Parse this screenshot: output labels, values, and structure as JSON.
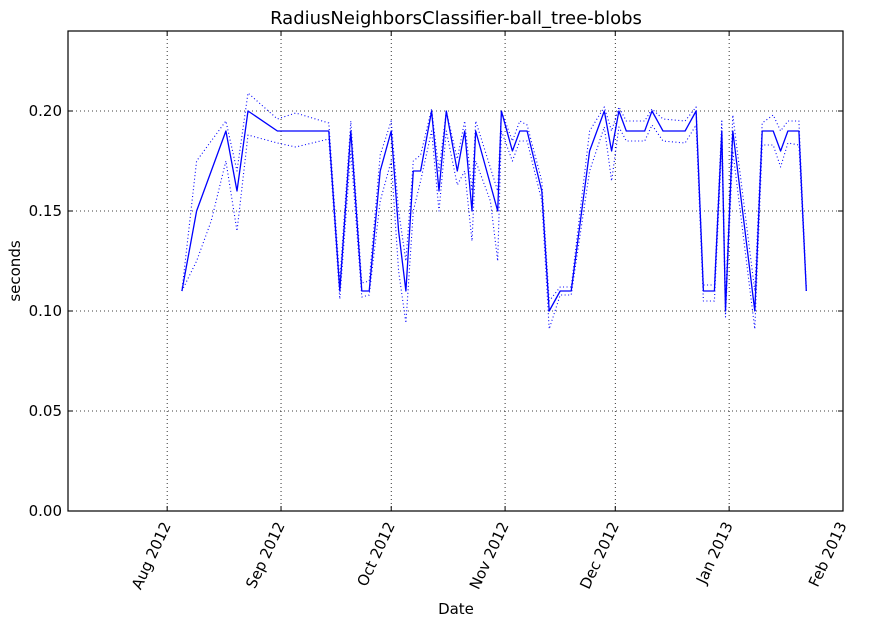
{
  "chart_data": {
    "type": "line",
    "title": "RadiusNeighborsClassifier-ball_tree-blobs",
    "xlabel": "Date",
    "ylabel": "seconds",
    "xlim": [
      "2012-07-05",
      "2013-02-01"
    ],
    "ylim": [
      0.0,
      0.24
    ],
    "grid": true,
    "x_ticks": [
      "2012-08-01",
      "2012-09-01",
      "2012-10-01",
      "2012-11-01",
      "2012-12-01",
      "2013-01-01",
      "2013-02-01"
    ],
    "x_tick_labels": [
      "Aug 2012",
      "Sep 2012",
      "Oct 2012",
      "Nov 2012",
      "Dec 2012",
      "Jan 2013",
      "Feb 2013"
    ],
    "y_ticks": [
      0.0,
      0.05,
      0.1,
      0.15,
      0.2
    ],
    "y_tick_labels": [
      "0.00",
      "0.05",
      "0.10",
      "0.15",
      "0.20"
    ],
    "line_color": "#0000ff",
    "series": [
      {
        "style": "solid",
        "points": [
          [
            "2012-08-05",
            0.11
          ],
          [
            "2012-08-09",
            0.15
          ],
          [
            "2012-08-17",
            0.19
          ],
          [
            "2012-08-20",
            0.16
          ],
          [
            "2012-08-23",
            0.2
          ],
          [
            "2012-08-31",
            0.19
          ],
          [
            "2012-09-14",
            0.19
          ],
          [
            "2012-09-17",
            0.11
          ],
          [
            "2012-09-20",
            0.19
          ],
          [
            "2012-09-23",
            0.11
          ],
          [
            "2012-09-25",
            0.11
          ],
          [
            "2012-09-28",
            0.17
          ],
          [
            "2012-10-01",
            0.19
          ],
          [
            "2012-10-03",
            0.14
          ],
          [
            "2012-10-05",
            0.11
          ],
          [
            "2012-10-07",
            0.17
          ],
          [
            "2012-10-09",
            0.17
          ],
          [
            "2012-10-12",
            0.2
          ],
          [
            "2012-10-14",
            0.16
          ],
          [
            "2012-10-16",
            0.2
          ],
          [
            "2012-10-19",
            0.17
          ],
          [
            "2012-10-21",
            0.19
          ],
          [
            "2012-10-23",
            0.15
          ],
          [
            "2012-10-24",
            0.19
          ],
          [
            "2012-10-30",
            0.15
          ],
          [
            "2012-10-31",
            0.2
          ],
          [
            "2012-11-03",
            0.18
          ],
          [
            "2012-11-05",
            0.19
          ],
          [
            "2012-11-07",
            0.19
          ],
          [
            "2012-11-11",
            0.16
          ],
          [
            "2012-11-13",
            0.1
          ],
          [
            "2012-11-16",
            0.11
          ],
          [
            "2012-11-19",
            0.11
          ],
          [
            "2012-11-24",
            0.18
          ],
          [
            "2012-11-28",
            0.2
          ],
          [
            "2012-11-30",
            0.18
          ],
          [
            "2012-12-02",
            0.2
          ],
          [
            "2012-12-04",
            0.19
          ],
          [
            "2012-12-09",
            0.19
          ],
          [
            "2012-12-11",
            0.2
          ],
          [
            "2012-12-14",
            0.19
          ],
          [
            "2012-12-20",
            0.19
          ],
          [
            "2012-12-23",
            0.2
          ],
          [
            "2012-12-25",
            0.11
          ],
          [
            "2012-12-28",
            0.11
          ],
          [
            "2012-12-30",
            0.19
          ],
          [
            "2012-12-31",
            0.1
          ],
          [
            "2013-01-02",
            0.19
          ],
          [
            "2013-01-08",
            0.1
          ],
          [
            "2013-01-10",
            0.19
          ],
          [
            "2013-01-13",
            0.19
          ],
          [
            "2013-01-15",
            0.18
          ],
          [
            "2013-01-17",
            0.19
          ],
          [
            "2013-01-20",
            0.19
          ],
          [
            "2013-01-22",
            0.11
          ]
        ]
      },
      {
        "style": "dotted",
        "points": [
          [
            "2012-08-05",
            0.11
          ],
          [
            "2012-08-09",
            0.125
          ],
          [
            "2012-08-13",
            0.145
          ],
          [
            "2012-08-17",
            0.175
          ],
          [
            "2012-08-20",
            0.14
          ],
          [
            "2012-08-23",
            0.188
          ],
          [
            "2012-08-31",
            0.184
          ],
          [
            "2012-09-05",
            0.182
          ],
          [
            "2012-09-14",
            0.186
          ],
          [
            "2012-09-17",
            0.106
          ],
          [
            "2012-09-20",
            0.18
          ],
          [
            "2012-09-23",
            0.107
          ],
          [
            "2012-09-25",
            0.108
          ],
          [
            "2012-09-28",
            0.155
          ],
          [
            "2012-10-01",
            0.175
          ],
          [
            "2012-10-03",
            0.12
          ],
          [
            "2012-10-05",
            0.094
          ],
          [
            "2012-10-07",
            0.15
          ],
          [
            "2012-10-09",
            0.165
          ],
          [
            "2012-10-12",
            0.19
          ],
          [
            "2012-10-14",
            0.15
          ],
          [
            "2012-10-16",
            0.19
          ],
          [
            "2012-10-19",
            0.163
          ],
          [
            "2012-10-21",
            0.17
          ],
          [
            "2012-10-23",
            0.135
          ],
          [
            "2012-10-24",
            0.175
          ],
          [
            "2012-10-28",
            0.155
          ],
          [
            "2012-10-30",
            0.125
          ],
          [
            "2012-10-31",
            0.19
          ],
          [
            "2012-11-03",
            0.175
          ],
          [
            "2012-11-05",
            0.185
          ],
          [
            "2012-11-07",
            0.185
          ],
          [
            "2012-11-11",
            0.155
          ],
          [
            "2012-11-13",
            0.091
          ],
          [
            "2012-11-16",
            0.108
          ],
          [
            "2012-11-19",
            0.108
          ],
          [
            "2012-11-24",
            0.17
          ],
          [
            "2012-11-28",
            0.192
          ],
          [
            "2012-11-30",
            0.165
          ],
          [
            "2012-12-02",
            0.192
          ],
          [
            "2012-12-04",
            0.185
          ],
          [
            "2012-12-09",
            0.185
          ],
          [
            "2012-12-11",
            0.193
          ],
          [
            "2012-12-14",
            0.185
          ],
          [
            "2012-12-20",
            0.184
          ],
          [
            "2012-12-23",
            0.193
          ],
          [
            "2012-12-25",
            0.105
          ],
          [
            "2012-12-28",
            0.105
          ],
          [
            "2012-12-30",
            0.183
          ],
          [
            "2012-12-31",
            0.097
          ],
          [
            "2013-01-02",
            0.18
          ],
          [
            "2013-01-08",
            0.091
          ],
          [
            "2013-01-10",
            0.183
          ],
          [
            "2013-01-13",
            0.183
          ],
          [
            "2013-01-15",
            0.172
          ],
          [
            "2013-01-17",
            0.184
          ],
          [
            "2013-01-20",
            0.183
          ],
          [
            "2013-01-22",
            0.11
          ]
        ]
      },
      {
        "style": "dotted",
        "points": [
          [
            "2012-08-05",
            0.11
          ],
          [
            "2012-08-09",
            0.175
          ],
          [
            "2012-08-13",
            0.185
          ],
          [
            "2012-08-17",
            0.195
          ],
          [
            "2012-08-20",
            0.17
          ],
          [
            "2012-08-23",
            0.209
          ],
          [
            "2012-08-31",
            0.196
          ],
          [
            "2012-09-05",
            0.199
          ],
          [
            "2012-09-14",
            0.194
          ],
          [
            "2012-09-17",
            0.115
          ],
          [
            "2012-09-20",
            0.195
          ],
          [
            "2012-09-23",
            0.114
          ],
          [
            "2012-09-25",
            0.115
          ],
          [
            "2012-09-28",
            0.178
          ],
          [
            "2012-10-01",
            0.195
          ],
          [
            "2012-10-03",
            0.15
          ],
          [
            "2012-10-05",
            0.125
          ],
          [
            "2012-10-07",
            0.175
          ],
          [
            "2012-10-09",
            0.178
          ],
          [
            "2012-10-12",
            0.201
          ],
          [
            "2012-10-14",
            0.17
          ],
          [
            "2012-10-16",
            0.2
          ],
          [
            "2012-10-19",
            0.176
          ],
          [
            "2012-10-21",
            0.195
          ],
          [
            "2012-10-23",
            0.16
          ],
          [
            "2012-10-24",
            0.195
          ],
          [
            "2012-10-30",
            0.16
          ],
          [
            "2012-10-31",
            0.2
          ],
          [
            "2012-11-03",
            0.185
          ],
          [
            "2012-11-05",
            0.195
          ],
          [
            "2012-11-07",
            0.193
          ],
          [
            "2012-11-11",
            0.165
          ],
          [
            "2012-11-13",
            0.105
          ],
          [
            "2012-11-16",
            0.112
          ],
          [
            "2012-11-19",
            0.112
          ],
          [
            "2012-11-24",
            0.19
          ],
          [
            "2012-11-28",
            0.202
          ],
          [
            "2012-11-30",
            0.19
          ],
          [
            "2012-12-02",
            0.202
          ],
          [
            "2012-12-04",
            0.195
          ],
          [
            "2012-12-09",
            0.195
          ],
          [
            "2012-12-11",
            0.201
          ],
          [
            "2012-12-14",
            0.196
          ],
          [
            "2012-12-20",
            0.195
          ],
          [
            "2012-12-23",
            0.202
          ],
          [
            "2012-12-25",
            0.113
          ],
          [
            "2012-12-28",
            0.113
          ],
          [
            "2012-12-30",
            0.195
          ],
          [
            "2012-12-31",
            0.104
          ],
          [
            "2013-01-02",
            0.198
          ],
          [
            "2013-01-08",
            0.11
          ],
          [
            "2013-01-10",
            0.194
          ],
          [
            "2013-01-13",
            0.198
          ],
          [
            "2013-01-15",
            0.19
          ],
          [
            "2013-01-17",
            0.195
          ],
          [
            "2013-01-20",
            0.195
          ],
          [
            "2013-01-22",
            0.112
          ]
        ]
      }
    ]
  }
}
